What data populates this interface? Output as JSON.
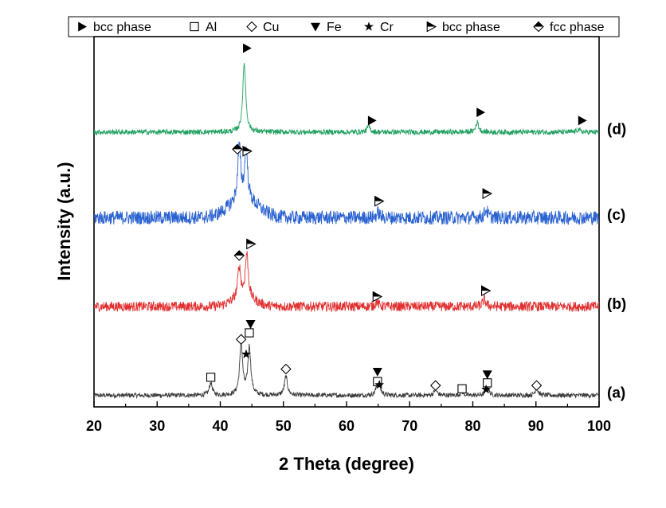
{
  "chart_data": {
    "type": "line",
    "title": "",
    "xlabel": "2 Theta (degree)",
    "ylabel": "Intensity (a.u.)",
    "xlim": [
      20,
      100
    ],
    "xticks": [
      20,
      30,
      40,
      50,
      60,
      70,
      80,
      90,
      100
    ],
    "y_ticks_shown": false,
    "grid": false,
    "legend_placement": "top",
    "legend": [
      {
        "symbol": "filled-right-triangle",
        "label": "bcc phase"
      },
      {
        "symbol": "open-square",
        "label": "Al"
      },
      {
        "symbol": "open-diamond",
        "label": "Cu"
      },
      {
        "symbol": "filled-down-triangle",
        "label": "Fe"
      },
      {
        "symbol": "star",
        "label": "Cr"
      },
      {
        "symbol": "half-right-triangle",
        "label": "bcc phase"
      },
      {
        "symbol": "half-diamond",
        "label": "fcc phase"
      }
    ],
    "series": [
      {
        "label": "(a)",
        "color": "#3a3a3a",
        "baseline": 0.0,
        "peaks": [
          {
            "x": 38.5,
            "h": 0.38
          },
          {
            "x": 43.3,
            "h": 1.55
          },
          {
            "x": 44.6,
            "h": 1.45
          },
          {
            "x": 50.4,
            "h": 0.58
          },
          {
            "x": 64.9,
            "h": 0.28
          },
          {
            "x": 65.2,
            "h": 0.22
          },
          {
            "x": 74.1,
            "h": 0.18
          },
          {
            "x": 78.3,
            "h": 0.1
          },
          {
            "x": 82.3,
            "h": 0.28
          },
          {
            "x": 90.1,
            "h": 0.22
          }
        ],
        "markers": [
          {
            "x": 38.5,
            "symbol": "open-square",
            "y": 0.55
          },
          {
            "x": 43.3,
            "symbol": "open-diamond",
            "y": 1.7
          },
          {
            "x": 44.6,
            "symbol": "open-square",
            "y": 1.9
          },
          {
            "x": 44.8,
            "symbol": "filled-down-triangle",
            "y": 2.17
          },
          {
            "x": 44.1,
            "symbol": "star",
            "y": 1.25
          },
          {
            "x": 50.4,
            "symbol": "open-diamond",
            "y": 0.8
          },
          {
            "x": 64.9,
            "symbol": "filled-down-triangle",
            "y": 0.72
          },
          {
            "x": 64.9,
            "symbol": "open-square",
            "y": 0.42
          },
          {
            "x": 65.2,
            "symbol": "star",
            "y": 0.32
          },
          {
            "x": 74.1,
            "symbol": "open-diamond",
            "y": 0.3
          },
          {
            "x": 78.3,
            "symbol": "open-square",
            "y": 0.2
          },
          {
            "x": 82.3,
            "symbol": "filled-down-triangle",
            "y": 0.64
          },
          {
            "x": 82.3,
            "symbol": "open-square",
            "y": 0.38
          },
          {
            "x": 82.1,
            "symbol": "star",
            "y": 0.18
          },
          {
            "x": 90.1,
            "symbol": "open-diamond",
            "y": 0.3
          }
        ]
      },
      {
        "label": "(b)",
        "color": "#e03030",
        "baseline": 2.7,
        "peaks": [
          {
            "x": 43.0,
            "h": 0.95
          },
          {
            "x": 44.2,
            "h": 1.35
          },
          {
            "x": 64.8,
            "h": 0.15
          },
          {
            "x": 81.8,
            "h": 0.22
          }
        ],
        "markers": [
          {
            "x": 43.0,
            "symbol": "half-diamond",
            "y": 1.55
          },
          {
            "x": 44.8,
            "symbol": "half-right-triangle",
            "y": 1.9
          },
          {
            "x": 64.8,
            "symbol": "half-right-triangle",
            "y": 0.3
          },
          {
            "x": 82.0,
            "symbol": "half-right-triangle",
            "y": 0.48
          }
        ]
      },
      {
        "label": "(c)",
        "color": "#2a62d0",
        "baseline": 5.4,
        "peaks": [
          {
            "x": 43.0,
            "h": 1.6
          },
          {
            "x": 44.1,
            "h": 1.5
          },
          {
            "x": 65.0,
            "h": 0.15
          },
          {
            "x": 82.1,
            "h": 0.25
          }
        ],
        "markers": [
          {
            "x": 42.7,
            "symbol": "half-diamond",
            "y": 2.08
          },
          {
            "x": 44.2,
            "symbol": "half-right-triangle",
            "y": 2.02
          },
          {
            "x": 65.1,
            "symbol": "half-right-triangle",
            "y": 0.5
          },
          {
            "x": 82.2,
            "symbol": "half-right-triangle",
            "y": 0.73
          }
        ]
      },
      {
        "label": "(d)",
        "color": "#20a060",
        "baseline": 8.0,
        "peaks": [
          {
            "x": 43.8,
            "h": 2.1
          },
          {
            "x": 63.5,
            "h": 0.18
          },
          {
            "x": 80.7,
            "h": 0.3
          },
          {
            "x": 96.7,
            "h": 0.08
          }
        ],
        "markers": [
          {
            "x": 44.2,
            "symbol": "filled-right-triangle",
            "y": 2.55
          },
          {
            "x": 64.0,
            "symbol": "filled-right-triangle",
            "y": 0.35
          },
          {
            "x": 81.2,
            "symbol": "filled-right-triangle",
            "y": 0.6
          },
          {
            "x": 97.3,
            "symbol": "filled-right-triangle",
            "y": 0.35
          }
        ]
      }
    ]
  }
}
